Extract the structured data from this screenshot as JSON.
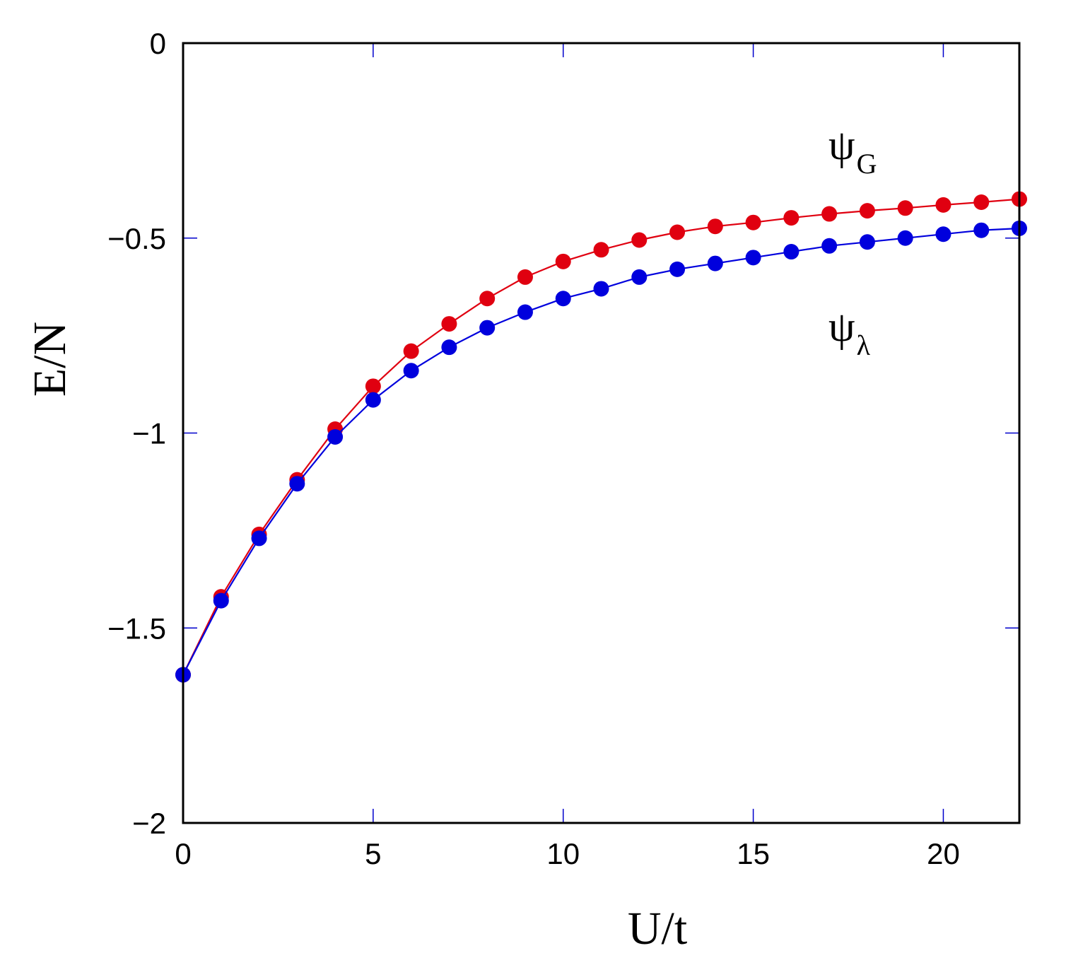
{
  "chart_data": {
    "type": "line",
    "xlabel": "U/t",
    "ylabel": "E/N",
    "xlim": [
      0,
      22
    ],
    "ylim": [
      -2,
      0
    ],
    "x_ticks": [
      0,
      5,
      10,
      15,
      20
    ],
    "y_ticks": [
      -2,
      -1.5,
      -1,
      -0.5,
      0
    ],
    "x_tick_labels": [
      "0",
      "5",
      "10",
      "15",
      "20"
    ],
    "y_tick_labels": [
      "−2",
      "−1.5",
      "−1",
      "−0.5",
      "0"
    ],
    "grid": false,
    "x": [
      0,
      1,
      2,
      3,
      4,
      5,
      6,
      7,
      8,
      9,
      10,
      11,
      12,
      13,
      14,
      15,
      16,
      17,
      18,
      19,
      20,
      21,
      22
    ],
    "series": [
      {
        "name": "ψG",
        "symbol": "ψ",
        "subscript": "G",
        "color": "#e00010",
        "values": [
          -1.62,
          -1.42,
          -1.26,
          -1.12,
          -0.99,
          -0.88,
          -0.79,
          -0.72,
          -0.655,
          -0.6,
          -0.56,
          -0.53,
          -0.505,
          -0.485,
          -0.47,
          -0.46,
          -0.448,
          -0.438,
          -0.43,
          -0.423,
          -0.415,
          -0.408,
          -0.4
        ]
      },
      {
        "name": "ψλ",
        "symbol": "ψ",
        "subscript": "λ",
        "color": "#0000dd",
        "values": [
          -1.62,
          -1.43,
          -1.27,
          -1.13,
          -1.01,
          -0.915,
          -0.84,
          -0.78,
          -0.73,
          -0.69,
          -0.655,
          -0.63,
          -0.6,
          -0.58,
          -0.565,
          -0.55,
          -0.535,
          -0.52,
          -0.51,
          -0.5,
          -0.49,
          -0.48,
          -0.475
        ]
      }
    ]
  }
}
